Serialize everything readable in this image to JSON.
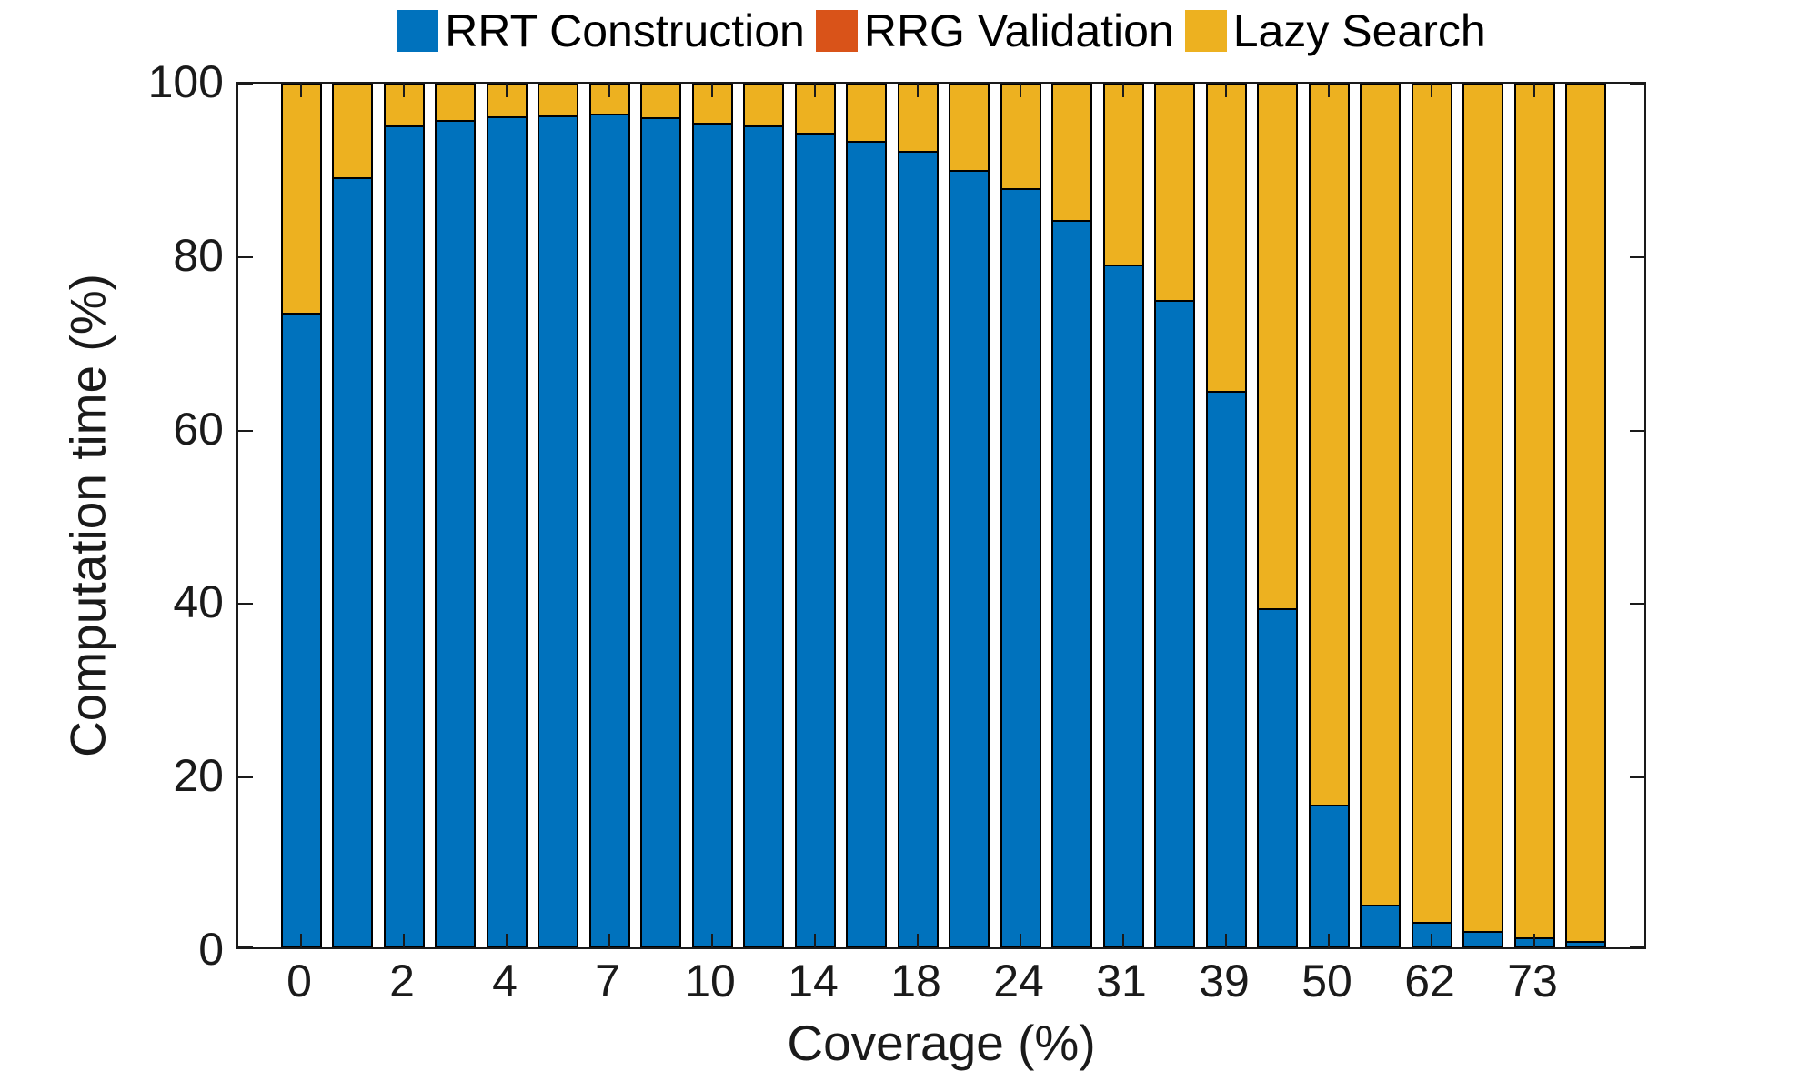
{
  "chart_data": {
    "type": "bar",
    "stacked": true,
    "orientation": "vertical",
    "title": "",
    "xlabel": "Coverage (%)",
    "ylabel": "Computation time (%)",
    "ylim": [
      0,
      100
    ],
    "yticks": [
      0,
      20,
      40,
      60,
      80,
      100
    ],
    "grid": false,
    "legend_position": "top",
    "categories": [
      "0",
      "",
      "2",
      "",
      "4",
      "",
      "7",
      "",
      "10",
      "",
      "14",
      "",
      "18",
      "",
      "24",
      "",
      "31",
      "",
      "39",
      "",
      "50",
      "",
      "62",
      "",
      "73",
      ""
    ],
    "series": [
      {
        "name": "RRT Construction",
        "color": "#0072BD",
        "values": [
          73.3,
          89.0,
          95.0,
          95.6,
          96.0,
          96.1,
          96.3,
          95.9,
          95.3,
          94.9,
          94.1,
          93.2,
          92.0,
          89.8,
          87.7,
          84.0,
          78.8,
          74.7,
          64.2,
          39.1,
          16.3,
          4.7,
          2.7,
          1.7,
          0.9,
          0.5
        ]
      },
      {
        "name": "RRG Validation",
        "color": "#D95319",
        "values": [
          0,
          0,
          0,
          0,
          0,
          0,
          0,
          0,
          0,
          0,
          0,
          0,
          0,
          0,
          0,
          0,
          0,
          0,
          0,
          0,
          0,
          0,
          0,
          0,
          0,
          0
        ]
      },
      {
        "name": "Lazy Search",
        "color": "#EDB120",
        "values": [
          26.7,
          11.0,
          5.0,
          4.4,
          4.0,
          3.9,
          3.7,
          4.1,
          4.7,
          5.1,
          5.9,
          6.8,
          8.0,
          10.2,
          12.3,
          16.0,
          21.2,
          25.3,
          35.8,
          60.9,
          83.7,
          95.3,
          97.3,
          98.3,
          99.1,
          99.5
        ]
      }
    ],
    "axis_color": "#1a1a1a",
    "text_color": "#1a1a1a"
  }
}
